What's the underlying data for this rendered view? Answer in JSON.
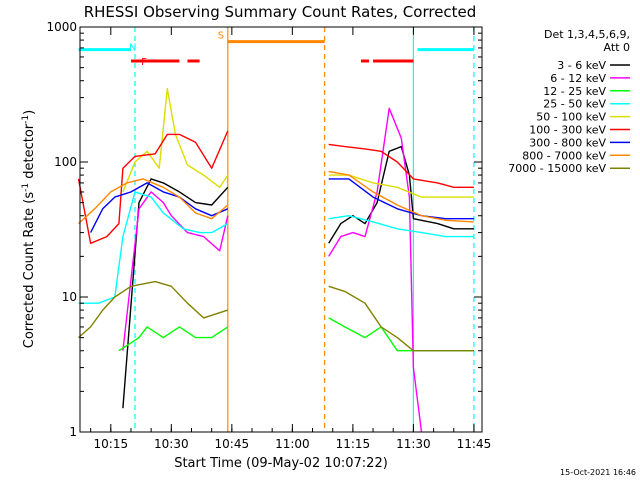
{
  "chart_data": {
    "type": "line",
    "title": "RHESSI Observing Summary Count Rates, Corrected",
    "xlabel": "Start Time (09-May-02 10:07:22)",
    "ylabel_main": "Corrected Count Rate (s",
    "ylabel_sup1": "-1",
    "ylabel_mid": " detector",
    "ylabel_sup2": "-1",
    "ylabel_end": ")",
    "y_scale": "log",
    "ylim": [
      1,
      1000
    ],
    "xlim": [
      "10:07:22",
      "11:47:00"
    ],
    "x_ticks": [
      "10:15",
      "10:30",
      "10:45",
      "11:00",
      "11:15",
      "11:30",
      "11:45"
    ],
    "y_ticks": [
      "1",
      "10",
      "100",
      "1000"
    ],
    "timestamp": "15-Oct-2021 16:46",
    "legend_position": "right",
    "legend_header": [
      "Det 1,3,4,5,6,9,",
      "Att 0"
    ],
    "series": [
      {
        "name": "3 - 6 keV",
        "color": "#000000",
        "points": [
          [
            "10:18",
            1.5
          ],
          [
            "10:22",
            50
          ],
          [
            "10:25",
            75
          ],
          [
            "10:28",
            70
          ],
          [
            "10:32",
            60
          ],
          [
            "10:36",
            50
          ],
          [
            "10:40",
            48
          ],
          [
            "10:44",
            65
          ],
          [
            "11:09",
            25
          ],
          [
            "11:12",
            35
          ],
          [
            "11:15",
            40
          ],
          [
            "11:18",
            35
          ],
          [
            "11:21",
            50
          ],
          [
            "11:24",
            120
          ],
          [
            "11:27",
            130
          ],
          [
            "11:29",
            80
          ],
          [
            "11:30",
            38
          ],
          [
            "11:36",
            35
          ],
          [
            "11:40",
            32
          ],
          [
            "11:45",
            32
          ]
        ]
      },
      {
        "name": "6 - 12 keV",
        "color": "#ff00ff",
        "points": [
          [
            "10:18",
            4
          ],
          [
            "10:22",
            45
          ],
          [
            "10:25",
            60
          ],
          [
            "10:28",
            50
          ],
          [
            "10:30",
            40
          ],
          [
            "10:34",
            30
          ],
          [
            "10:38",
            28
          ],
          [
            "10:42",
            22
          ],
          [
            "10:44",
            40
          ],
          [
            "11:09",
            20
          ],
          [
            "11:12",
            28
          ],
          [
            "11:15",
            30
          ],
          [
            "11:18",
            28
          ],
          [
            "11:21",
            60
          ],
          [
            "11:24",
            250
          ],
          [
            "11:27",
            150
          ],
          [
            "11:29",
            55
          ],
          [
            "11:30",
            3
          ],
          [
            "11:32",
            1
          ]
        ]
      },
      {
        "name": "12 - 25 keV",
        "color": "#00ff00",
        "points": [
          [
            "10:17",
            4
          ],
          [
            "10:22",
            5
          ],
          [
            "10:24",
            6
          ],
          [
            "10:28",
            5
          ],
          [
            "10:32",
            6
          ],
          [
            "10:36",
            5
          ],
          [
            "10:40",
            5
          ],
          [
            "10:44",
            6
          ],
          [
            "11:09",
            7
          ],
          [
            "11:13",
            6
          ],
          [
            "11:18",
            5
          ],
          [
            "11:22",
            6
          ],
          [
            "11:26",
            4
          ],
          [
            "11:30",
            4
          ],
          [
            "11:36",
            4
          ],
          [
            "11:40",
            4
          ],
          [
            "11:45",
            4
          ]
        ]
      },
      {
        "name": "25 - 50 keV",
        "color": "#00ffff",
        "points": [
          [
            "10:07",
            9
          ],
          [
            "10:12",
            9
          ],
          [
            "10:16",
            10
          ],
          [
            "10:18",
            28
          ],
          [
            "10:21",
            60
          ],
          [
            "10:25",
            55
          ],
          [
            "10:28",
            42
          ],
          [
            "10:33",
            32
          ],
          [
            "10:37",
            30
          ],
          [
            "10:40",
            30
          ],
          [
            "10:44",
            35
          ],
          [
            "11:09",
            38
          ],
          [
            "11:14",
            40
          ],
          [
            "11:20",
            36
          ],
          [
            "11:26",
            32
          ],
          [
            "11:32",
            30
          ],
          [
            "11:38",
            28
          ],
          [
            "11:45",
            28
          ]
        ]
      },
      {
        "name": "50 - 100 keV",
        "color": "#dddd00",
        "points": [
          [
            "10:18",
            60
          ],
          [
            "10:21",
            100
          ],
          [
            "10:24",
            120
          ],
          [
            "10:27",
            90
          ],
          [
            "10:29",
            350
          ],
          [
            "10:31",
            160
          ],
          [
            "10:34",
            95
          ],
          [
            "10:38",
            80
          ],
          [
            "10:42",
            65
          ],
          [
            "10:44",
            80
          ],
          [
            "11:09",
            80
          ],
          [
            "11:14",
            80
          ],
          [
            "11:20",
            70
          ],
          [
            "11:26",
            65
          ],
          [
            "11:32",
            55
          ],
          [
            "11:38",
            55
          ],
          [
            "11:45",
            55
          ]
        ]
      },
      {
        "name": "100 - 300 keV",
        "color": "#ff0000",
        "points": [
          [
            "10:07",
            75
          ],
          [
            "10:10",
            25
          ],
          [
            "10:14",
            28
          ],
          [
            "10:17",
            35
          ],
          [
            "10:18",
            90
          ],
          [
            "10:21",
            110
          ],
          [
            "10:26",
            115
          ],
          [
            "10:29",
            160
          ],
          [
            "10:32",
            160
          ],
          [
            "10:36",
            140
          ],
          [
            "10:40",
            90
          ],
          [
            "10:44",
            170
          ],
          [
            "11:09",
            135
          ],
          [
            "11:13",
            130
          ],
          [
            "11:18",
            125
          ],
          [
            "11:22",
            120
          ],
          [
            "11:26",
            100
          ],
          [
            "11:30",
            75
          ],
          [
            "11:36",
            70
          ],
          [
            "11:40",
            65
          ],
          [
            "11:45",
            65
          ]
        ]
      },
      {
        "name": "300 - 800 keV",
        "color": "#0000ff",
        "points": [
          [
            "10:10",
            30
          ],
          [
            "10:13",
            45
          ],
          [
            "10:16",
            55
          ],
          [
            "10:20",
            60
          ],
          [
            "10:24",
            70
          ],
          [
            "10:28",
            60
          ],
          [
            "10:32",
            55
          ],
          [
            "10:36",
            45
          ],
          [
            "10:40",
            40
          ],
          [
            "10:44",
            45
          ],
          [
            "11:09",
            75
          ],
          [
            "11:14",
            75
          ],
          [
            "11:20",
            55
          ],
          [
            "11:26",
            45
          ],
          [
            "11:32",
            40
          ],
          [
            "11:38",
            38
          ],
          [
            "11:45",
            38
          ]
        ]
      },
      {
        "name": "800 - 7000 keV",
        "color": "#ff8800",
        "points": [
          [
            "10:07",
            35
          ],
          [
            "10:11",
            45
          ],
          [
            "10:15",
            60
          ],
          [
            "10:19",
            70
          ],
          [
            "10:23",
            75
          ],
          [
            "10:28",
            65
          ],
          [
            "10:32",
            55
          ],
          [
            "10:36",
            42
          ],
          [
            "10:40",
            38
          ],
          [
            "10:44",
            48
          ],
          [
            "11:09",
            85
          ],
          [
            "11:14",
            80
          ],
          [
            "11:20",
            60
          ],
          [
            "11:26",
            48
          ],
          [
            "11:32",
            40
          ],
          [
            "11:38",
            37
          ],
          [
            "11:45",
            36
          ]
        ]
      },
      {
        "name": "7000 - 15000 keV",
        "color": "#808000",
        "points": [
          [
            "10:07",
            5
          ],
          [
            "10:10",
            6
          ],
          [
            "10:13",
            8
          ],
          [
            "10:16",
            10
          ],
          [
            "10:20",
            12
          ],
          [
            "10:26",
            13
          ],
          [
            "10:30",
            12
          ],
          [
            "10:34",
            9
          ],
          [
            "10:38",
            7
          ],
          [
            "10:44",
            8
          ],
          [
            "11:09",
            12
          ],
          [
            "11:13",
            11
          ],
          [
            "11:18",
            9
          ],
          [
            "11:22",
            6
          ],
          [
            "11:26",
            5
          ],
          [
            "11:30",
            4
          ],
          [
            "11:36",
            4
          ],
          [
            "11:40",
            4
          ],
          [
            "11:45",
            4
          ]
        ]
      }
    ],
    "annotations": [
      {
        "label": "F",
        "time": "10:25",
        "color": "#ff0000"
      },
      {
        "label": "N",
        "time": "10:21",
        "color": "#00ffff"
      },
      {
        "label": "S",
        "time": "10:44",
        "color": "#ff8800"
      }
    ],
    "flag_bars": [
      {
        "color": "#ff0000",
        "value": 560,
        "intervals": [
          [
            "10:20",
            "10:32"
          ],
          [
            "10:34",
            "10:37"
          ],
          [
            "11:17",
            "11:19"
          ],
          [
            "11:20",
            "11:30"
          ]
        ]
      },
      {
        "color": "#00ffff",
        "value": 680,
        "intervals": [
          [
            "10:07",
            "10:20"
          ],
          [
            "11:31",
            "11:45"
          ]
        ]
      },
      {
        "color": "#ff8800",
        "value": 780,
        "intervals": [
          [
            "10:44",
            "11:08"
          ]
        ]
      }
    ],
    "vertical_markers": [
      {
        "time": "10:21",
        "color": "#00ffff",
        "style": "dashed"
      },
      {
        "time": "11:30",
        "color": "#00ffff",
        "style": "solid"
      },
      {
        "time": "11:45",
        "color": "#00ffff",
        "style": "dashed"
      },
      {
        "time": "10:44",
        "color": "#ff8800",
        "style": "solid"
      },
      {
        "time": "11:08",
        "color": "#ff8800",
        "style": "dashed"
      }
    ]
  }
}
